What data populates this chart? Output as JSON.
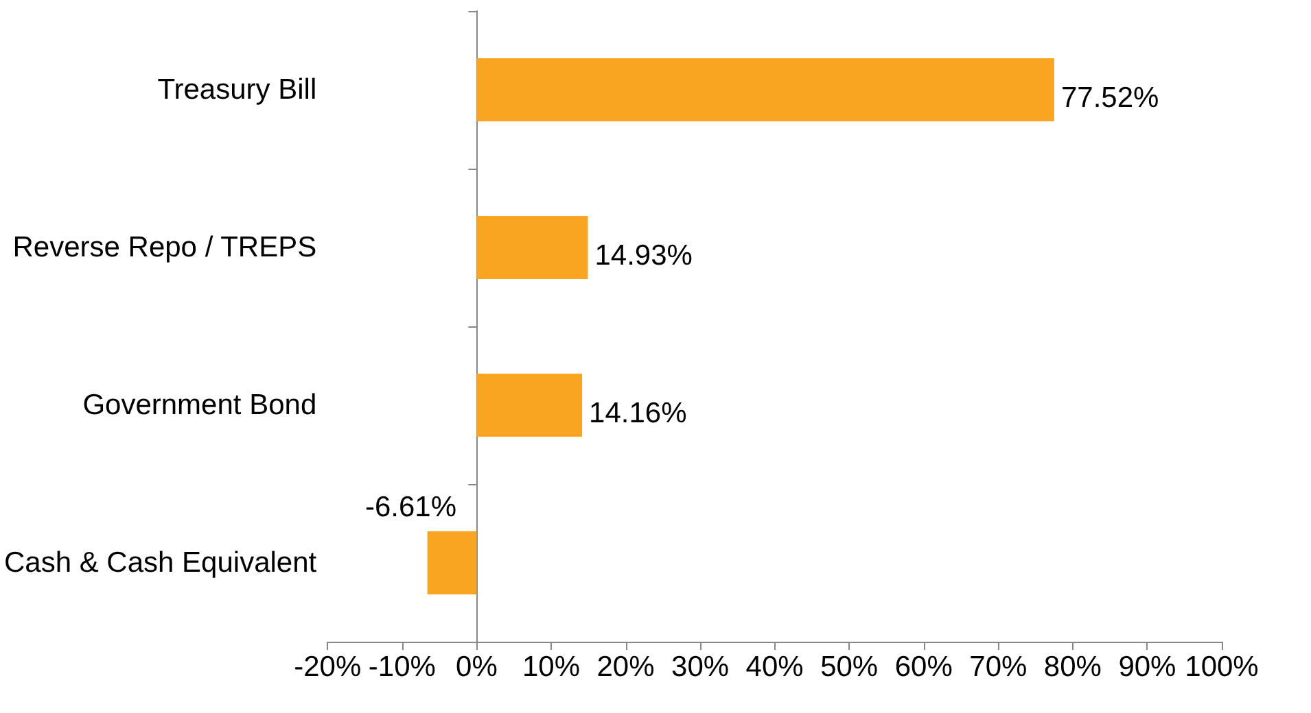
{
  "chart_data": {
    "type": "bar",
    "orientation": "horizontal",
    "categories": [
      "Treasury Bill",
      "Reverse Repo / TREPS",
      "Government Bond",
      "Cash & Cash Equivalent"
    ],
    "values": [
      77.52,
      14.93,
      14.16,
      -6.61
    ],
    "value_labels": [
      "77.52%",
      "14.93%",
      "14.16%",
      "-6.61%"
    ],
    "color": "#f9a521",
    "xlim": [
      -20,
      100
    ],
    "xticks": [
      {
        "value": -20,
        "label": "-20%"
      },
      {
        "value": -10,
        "label": "-10%"
      },
      {
        "value": 0,
        "label": "0%"
      },
      {
        "value": 10,
        "label": "10%"
      },
      {
        "value": 20,
        "label": "20%"
      },
      {
        "value": 30,
        "label": "30%"
      },
      {
        "value": 40,
        "label": "40%"
      },
      {
        "value": 50,
        "label": "50%"
      },
      {
        "value": 60,
        "label": "60%"
      },
      {
        "value": 70,
        "label": "70%"
      },
      {
        "value": 80,
        "label": "80%"
      },
      {
        "value": 90,
        "label": "90%"
      },
      {
        "value": 100,
        "label": "100%"
      }
    ]
  }
}
